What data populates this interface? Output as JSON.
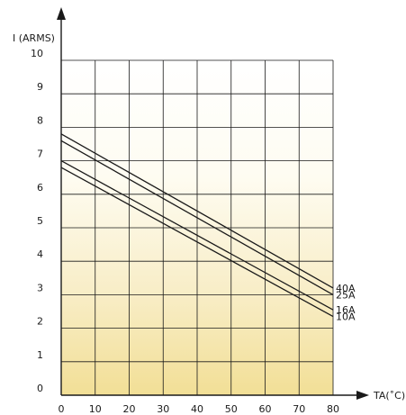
{
  "chart_data": {
    "type": "line",
    "xlabel": "TA(˚C)",
    "ylabel": "I (ARMS)",
    "xlim": [
      0,
      80
    ],
    "ylim": [
      0,
      10
    ],
    "x_ticks": [
      "0",
      "10",
      "20",
      "30",
      "40",
      "50",
      "60",
      "70",
      "80"
    ],
    "y_ticks": [
      "0",
      "1",
      "2",
      "3",
      "4",
      "5",
      "6",
      "7",
      "8",
      "9",
      "10"
    ],
    "grid": true,
    "background": "yellow-gradient",
    "series": [
      {
        "name": "40A",
        "x": [
          0,
          80
        ],
        "y": [
          7.8,
          3.2
        ]
      },
      {
        "name": "25A",
        "x": [
          0,
          80
        ],
        "y": [
          7.6,
          3.0
        ]
      },
      {
        "name": "16A",
        "x": [
          0,
          80
        ],
        "y": [
          7.0,
          2.55
        ]
      },
      {
        "name": "10A",
        "x": [
          0,
          80
        ],
        "y": [
          6.8,
          2.35
        ]
      }
    ]
  }
}
